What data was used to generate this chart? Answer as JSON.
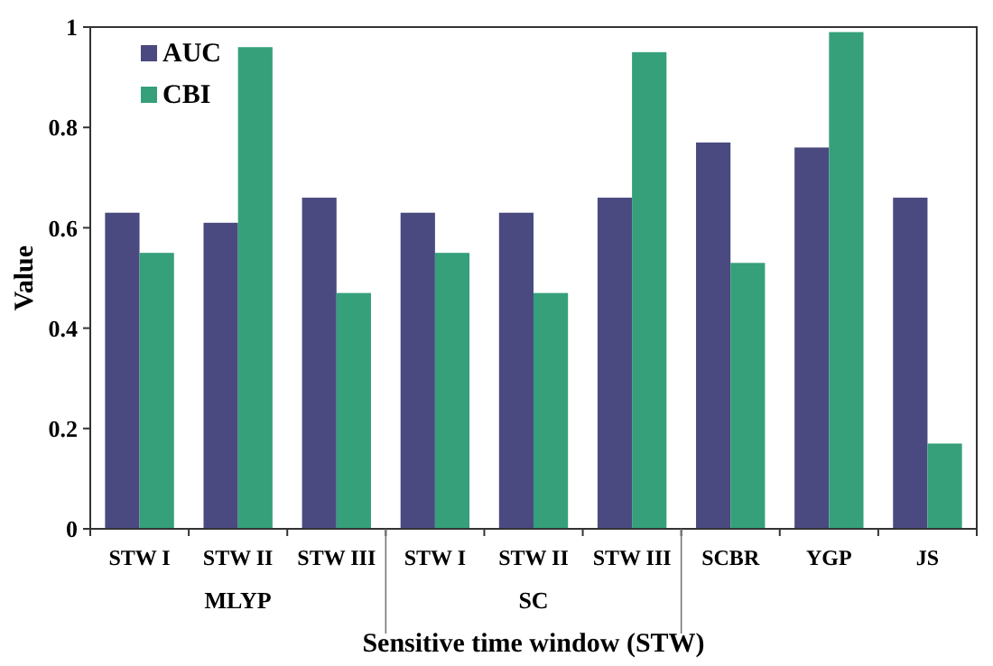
{
  "chart_data": {
    "type": "bar",
    "xlabel": "Sensitive time window (STW)",
    "ylabel": "Value",
    "categories": [
      "STW I",
      "STW II",
      "STW III",
      "STW I",
      "STW II",
      "STW III",
      "SCBR",
      "YGP",
      "JS"
    ],
    "series": [
      {
        "name": "AUC",
        "color": "#4a4a80",
        "values": [
          0.63,
          0.61,
          0.66,
          0.63,
          0.63,
          0.66,
          0.77,
          0.76,
          0.66
        ]
      },
      {
        "name": "CBI",
        "color": "#35a07a",
        "values": [
          0.55,
          0.96,
          0.47,
          0.55,
          0.47,
          0.95,
          0.53,
          0.99,
          0.17
        ]
      }
    ],
    "annotations": [
      "MLYP",
      "SC"
    ],
    "ylim": [
      0,
      1
    ],
    "yticks": [
      0,
      0.2,
      0.4,
      0.6,
      0.8,
      1
    ],
    "grid": false,
    "legend": "top left"
  }
}
